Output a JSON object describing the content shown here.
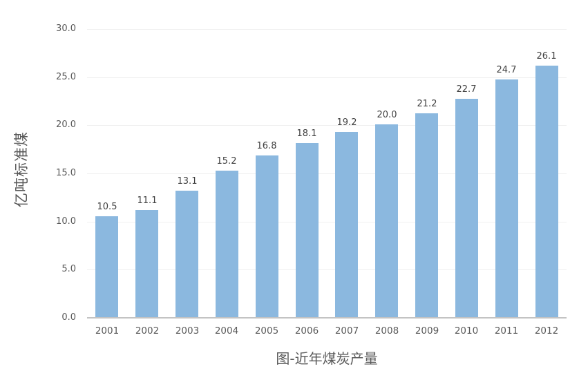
{
  "page": {
    "background_color": "#ffffff"
  },
  "chart_data": {
    "type": "bar",
    "title": "图-近年煤炭产量",
    "title_position": "bottom-center",
    "xlabel": "",
    "ylabel": "亿吨标准煤",
    "categories": [
      "2001",
      "2002",
      "2003",
      "2004",
      "2005",
      "2006",
      "2007",
      "2008",
      "2009",
      "2010",
      "2011",
      "2012"
    ],
    "values": [
      10.5,
      11.1,
      13.1,
      15.2,
      16.8,
      18.1,
      19.2,
      20.0,
      21.2,
      22.7,
      24.7,
      26.1
    ],
    "data_labels": [
      "10.5",
      "11.1",
      "13.1",
      "15.2",
      "16.8",
      "18.1",
      "19.2",
      "20.0",
      "21.2",
      "22.7",
      "24.7",
      "26.1"
    ],
    "ylim": [
      0,
      30
    ],
    "ytick_step": 5,
    "yticks": [
      "0.0",
      "5.0",
      "10.0",
      "15.0",
      "20.0",
      "25.0",
      "30.0"
    ],
    "grid": "horizontal",
    "legend": "none",
    "bar_color": "#8BB8DF",
    "gridline_color": "#EFEFEF",
    "axis_line_color": "#C3C3C3",
    "tick_label_color": "#595959",
    "data_label_color": "#404040",
    "title_color": "#595959"
  }
}
